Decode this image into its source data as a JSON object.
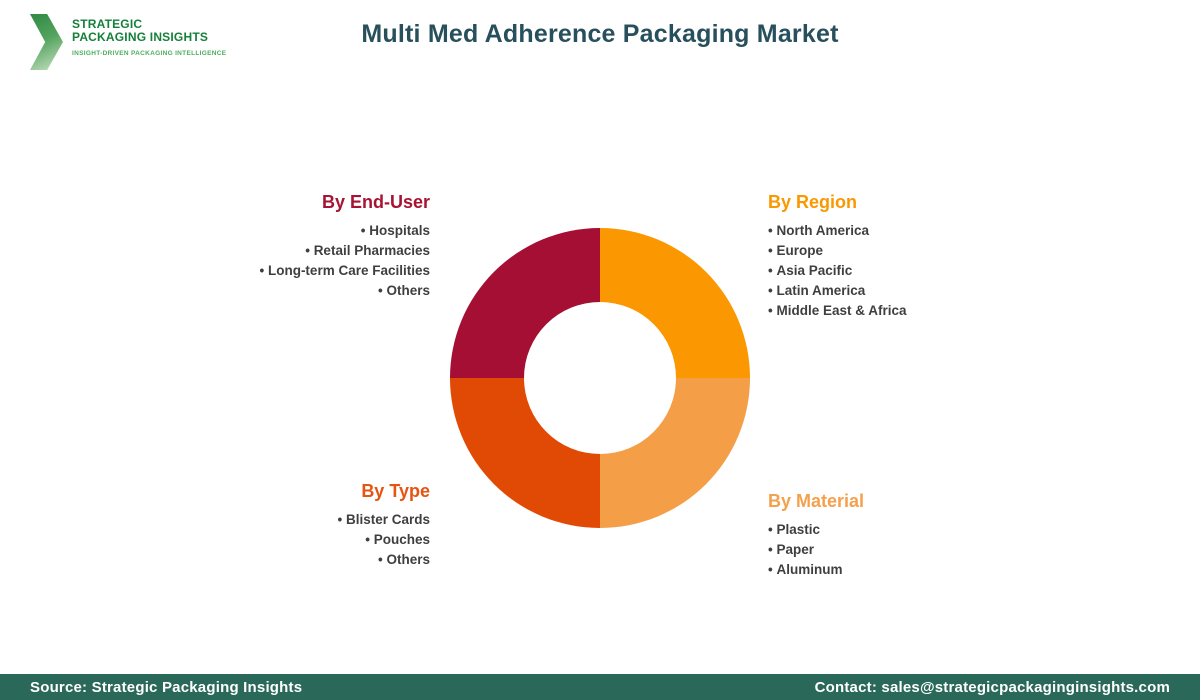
{
  "logo": {
    "line1": "STRATEGIC",
    "line2": "PACKAGING INSIGHTS",
    "tagline": "INSIGHT-DRIVEN PACKAGING INTELLIGENCE"
  },
  "header": {
    "title": "Multi Med Adherence Packaging Market"
  },
  "sections": {
    "end_user": {
      "title": "By End-User",
      "title_color": "#a81233",
      "items": [
        "Hospitals",
        "Retail Pharmacies",
        "Long-term Care Facilities",
        "Others"
      ]
    },
    "region": {
      "title": "By Region",
      "title_color": "#fa9800",
      "items": [
        "North America",
        "Europe",
        "Asia Pacific",
        "Latin America",
        "Middle East & Africa"
      ]
    },
    "type": {
      "title": "By Type",
      "title_color": "#e75310",
      "items": [
        "Blister Cards",
        "Pouches",
        "Others"
      ]
    },
    "material": {
      "title": "By Material",
      "title_color": "#f5a04c",
      "items": [
        "Plastic",
        "Paper",
        "Aluminum"
      ]
    }
  },
  "chart_data": {
    "type": "pie",
    "subtype": "donut",
    "title": "Multi Med Adherence Packaging Market",
    "legend_position": "around-chart",
    "start_angle_deg": 0,
    "direction": "clockwise",
    "inner_radius_ratio": 0.51,
    "segments": [
      {
        "label": "By Region",
        "value": 25,
        "color": "#fb9701",
        "position": "top-right"
      },
      {
        "label": "By Material",
        "value": 25,
        "color": "#f49e48",
        "position": "bottom-right"
      },
      {
        "label": "By Type",
        "value": 25,
        "color": "#e14a04",
        "position": "bottom-left"
      },
      {
        "label": "By End-User",
        "value": 25,
        "color": "#a50f33",
        "position": "top-left"
      }
    ]
  },
  "footer": {
    "source": "Source: Strategic Packaging Insights",
    "contact": "Contact: sales@strategicpackaginginsights.com",
    "background": "#2a685a"
  }
}
